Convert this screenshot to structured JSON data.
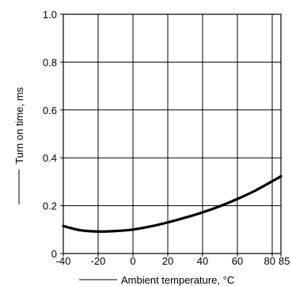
{
  "chart_data": {
    "type": "line",
    "xlabel": "Ambient temperature, °C",
    "ylabel": "Turn on time, ms",
    "xlim": [
      -40,
      85
    ],
    "ylim": [
      0,
      1.0
    ],
    "grid": true,
    "x_ticks": [
      -40,
      -20,
      0,
      20,
      40,
      60,
      80,
      85
    ],
    "y_ticks": [
      0,
      0.2,
      0.4,
      0.6,
      0.8,
      1.0
    ],
    "x_tick_labels": [
      "-40",
      "-20",
      "0",
      "20",
      "40",
      "60",
      "80",
      "85"
    ],
    "y_tick_labels": [
      "0",
      "0.2",
      "0.4",
      "0.6",
      "0.8",
      "1.0"
    ],
    "series": [
      {
        "x": [
          -40,
          -30,
          -20,
          -10,
          0,
          10,
          20,
          30,
          40,
          50,
          60,
          70,
          80,
          85
        ],
        "y": [
          0.115,
          0.097,
          0.092,
          0.094,
          0.1,
          0.113,
          0.13,
          0.15,
          0.172,
          0.198,
          0.228,
          0.262,
          0.302,
          0.323
        ]
      }
    ],
    "colors": {
      "line": "#000000",
      "grid": "#000000",
      "background": "#ffffff"
    }
  }
}
